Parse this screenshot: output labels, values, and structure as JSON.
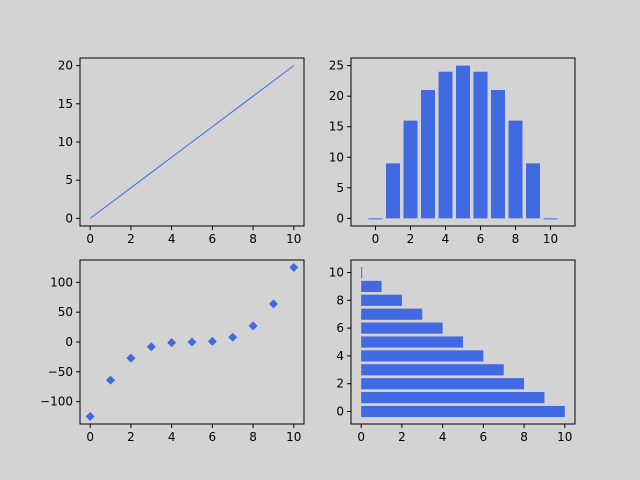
{
  "colors": {
    "background": "#d3d3d3",
    "series": "#4169e1",
    "axes": "#000000"
  },
  "chart_data": [
    {
      "type": "line",
      "x": [
        0,
        1,
        2,
        3,
        4,
        5,
        6,
        7,
        8,
        9,
        10
      ],
      "y": [
        0,
        2,
        4,
        6,
        8,
        10,
        12,
        14,
        16,
        18,
        20
      ],
      "xlim": [
        -0.5,
        10.5
      ],
      "ylim": [
        -1,
        21
      ],
      "xticks": [
        "0",
        "2",
        "4",
        "6",
        "8",
        "10"
      ],
      "yticks": [
        "0",
        "5",
        "10",
        "15",
        "20"
      ],
      "grid": false
    },
    {
      "type": "bar",
      "x": [
        0,
        1,
        2,
        3,
        4,
        5,
        6,
        7,
        8,
        9,
        10
      ],
      "values": [
        0,
        9,
        16,
        21,
        24,
        25,
        24,
        21,
        16,
        9,
        0
      ],
      "xlim": [
        -1.4,
        11.4
      ],
      "ylim": [
        -1.25,
        26.25
      ],
      "xticks": [
        "0",
        "2",
        "4",
        "6",
        "8",
        "10"
      ],
      "yticks": [
        "0",
        "5",
        "10",
        "15",
        "20",
        "25"
      ],
      "grid": false
    },
    {
      "type": "scatter",
      "x": [
        0,
        1,
        2,
        3,
        4,
        5,
        6,
        7,
        8,
        9,
        10
      ],
      "y": [
        -125,
        -64,
        -27,
        -8,
        -1,
        0,
        1,
        8,
        27,
        64,
        125
      ],
      "xlim": [
        -0.5,
        10.5
      ],
      "ylim": [
        -137.5,
        137.5
      ],
      "xticks": [
        "0",
        "2",
        "4",
        "6",
        "8",
        "10"
      ],
      "yticks": [
        "−100",
        "−50",
        "0",
        "50",
        "100"
      ],
      "grid": false
    },
    {
      "type": "bar",
      "orientation": "horizontal",
      "y": [
        0,
        1,
        2,
        3,
        4,
        5,
        6,
        7,
        8,
        9,
        10
      ],
      "values": [
        10,
        9,
        8,
        7,
        6,
        5,
        4,
        3,
        2,
        1,
        0
      ],
      "xlim": [
        -0.5,
        10.5
      ],
      "ylim": [
        -0.9,
        10.9
      ],
      "xticks": [
        "0",
        "2",
        "4",
        "6",
        "8",
        "10"
      ],
      "yticks": [
        "0",
        "2",
        "4",
        "6",
        "8",
        "10"
      ],
      "grid": false
    }
  ]
}
